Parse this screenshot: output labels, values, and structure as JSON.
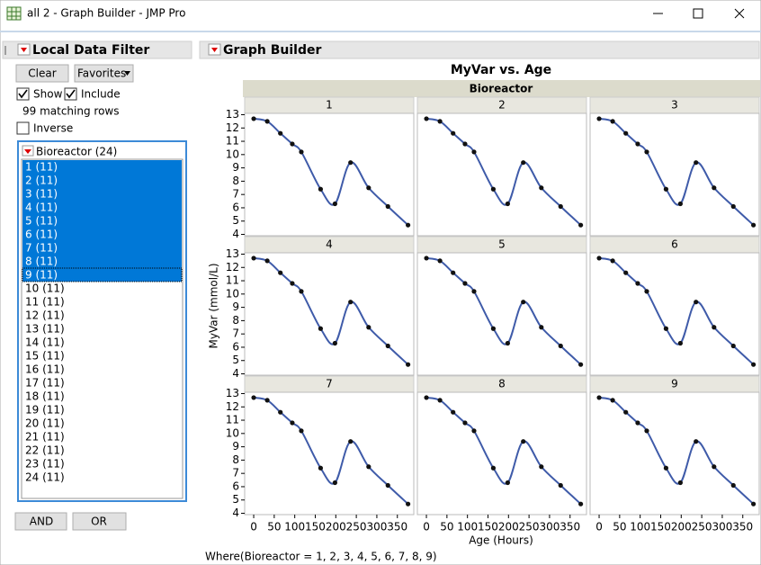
{
  "window": {
    "title": "all 2 - Graph Builder - JMP Pro"
  },
  "filter": {
    "title": "Local Data Filter",
    "clear": "Clear",
    "favorites": "Favorites",
    "show": "Show",
    "include": "Include",
    "matching": "99 matching rows",
    "inverse": "Inverse",
    "column": "Bioreactor (24)",
    "items": [
      {
        "label": "1 (11)",
        "selected": true
      },
      {
        "label": "2 (11)",
        "selected": true
      },
      {
        "label": "3 (11)",
        "selected": true
      },
      {
        "label": "4 (11)",
        "selected": true
      },
      {
        "label": "5 (11)",
        "selected": true
      },
      {
        "label": "6 (11)",
        "selected": true
      },
      {
        "label": "7 (11)",
        "selected": true
      },
      {
        "label": "8 (11)",
        "selected": true
      },
      {
        "label": "9 (11)",
        "selected": true
      },
      {
        "label": "10 (11)",
        "selected": false
      },
      {
        "label": "11 (11)",
        "selected": false
      },
      {
        "label": "12 (11)",
        "selected": false
      },
      {
        "label": "13 (11)",
        "selected": false
      },
      {
        "label": "14 (11)",
        "selected": false
      },
      {
        "label": "15 (11)",
        "selected": false
      },
      {
        "label": "16 (11)",
        "selected": false
      },
      {
        "label": "17 (11)",
        "selected": false
      },
      {
        "label": "18 (11)",
        "selected": false
      },
      {
        "label": "19 (11)",
        "selected": false
      },
      {
        "label": "20 (11)",
        "selected": false
      },
      {
        "label": "21 (11)",
        "selected": false
      },
      {
        "label": "22 (11)",
        "selected": false
      },
      {
        "label": "23 (11)",
        "selected": false
      },
      {
        "label": "24 (11)",
        "selected": false
      }
    ],
    "and": "AND",
    "or": "OR"
  },
  "graph": {
    "header": "Graph Builder",
    "title": "MyVar vs. Age",
    "group_label": "Bioreactor",
    "y_label": "MyVar (mmol/L)",
    "x_label": "Age (Hours)",
    "where": "Where(Bioreactor = 1, 2, 3, 4, 5, 6, 7, 8, 9)",
    "xlim": [
      -22,
      390
    ],
    "ylim": [
      3.9,
      13.1
    ],
    "xticks": [
      0,
      50,
      100,
      150,
      200,
      250,
      300,
      350
    ],
    "yticks": [
      4,
      5,
      6,
      7,
      8,
      9,
      10,
      11,
      12,
      13
    ],
    "x": [
      0,
      33,
      65,
      94,
      116,
      163,
      198,
      236,
      280,
      327,
      376
    ],
    "line_color": "#3f5ba9",
    "panels": [
      {
        "label": "1",
        "y": [
          12.7,
          12.5,
          11.6,
          10.8,
          10.2,
          7.4,
          6.3,
          9.4,
          7.5,
          6.1,
          4.7
        ]
      },
      {
        "label": "2",
        "y": [
          12.7,
          12.5,
          11.6,
          10.8,
          10.2,
          7.4,
          6.3,
          9.4,
          7.5,
          6.1,
          4.7
        ]
      },
      {
        "label": "3",
        "y": [
          12.7,
          12.5,
          11.6,
          10.8,
          10.2,
          7.4,
          6.3,
          9.4,
          7.5,
          6.1,
          4.7
        ]
      },
      {
        "label": "4",
        "y": [
          12.7,
          12.5,
          11.6,
          10.8,
          10.2,
          7.4,
          6.3,
          9.4,
          7.5,
          6.1,
          4.7
        ]
      },
      {
        "label": "5",
        "y": [
          12.7,
          12.5,
          11.6,
          10.8,
          10.2,
          7.4,
          6.3,
          9.4,
          7.5,
          6.1,
          4.7
        ]
      },
      {
        "label": "6",
        "y": [
          12.7,
          12.5,
          11.6,
          10.8,
          10.2,
          7.4,
          6.3,
          9.4,
          7.5,
          6.1,
          4.7
        ]
      },
      {
        "label": "7",
        "y": [
          12.7,
          12.5,
          11.6,
          10.8,
          10.2,
          7.4,
          6.3,
          9.4,
          7.5,
          6.1,
          4.7
        ]
      },
      {
        "label": "8",
        "y": [
          12.7,
          12.5,
          11.6,
          10.8,
          10.2,
          7.4,
          6.3,
          9.4,
          7.5,
          6.1,
          4.7
        ]
      },
      {
        "label": "9",
        "y": [
          12.7,
          12.5,
          11.6,
          10.8,
          10.2,
          7.4,
          6.3,
          9.4,
          7.5,
          6.1,
          4.7
        ]
      }
    ]
  }
}
